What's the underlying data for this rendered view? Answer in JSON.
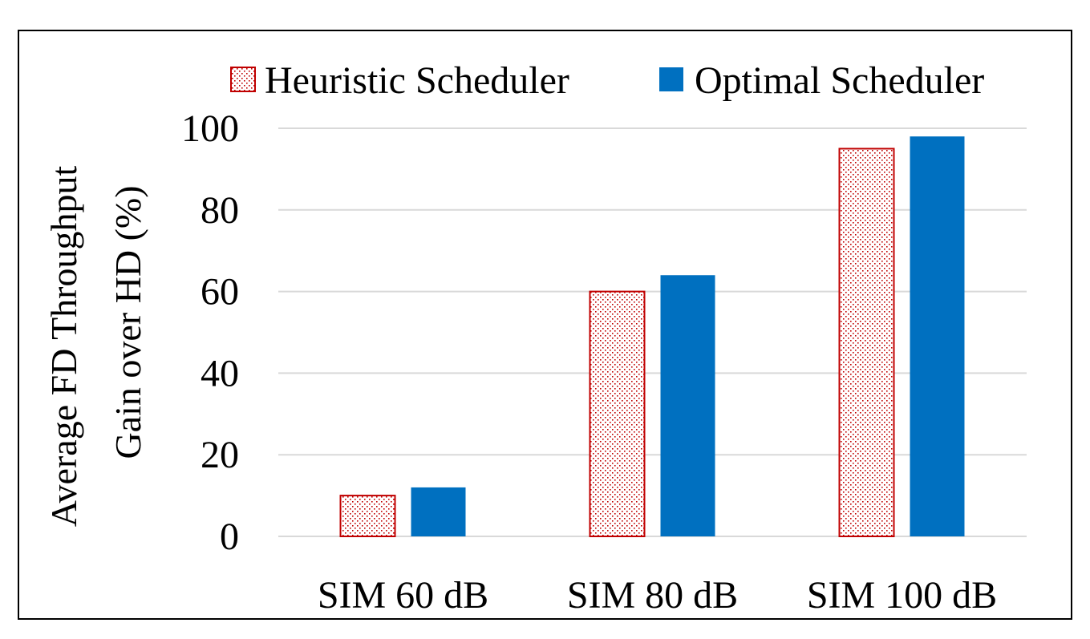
{
  "chart_data": {
    "type": "bar",
    "categories": [
      "SIM 60 dB",
      "SIM 80 dB",
      "SIM 100 dB"
    ],
    "series": [
      {
        "name": "Heuristic Scheduler",
        "values": [
          10,
          60,
          95
        ],
        "color": "#c00000",
        "fill": "dotted"
      },
      {
        "name": "Optimal Scheduler",
        "values": [
          12,
          64,
          98
        ],
        "color": "#0070c0",
        "fill": "solid"
      }
    ],
    "ylabel_lines": [
      "Average FD Throughput",
      "Gain over HD (%)"
    ],
    "ylim": [
      0,
      100
    ],
    "yticks": [
      0,
      20,
      40,
      60,
      80,
      100
    ],
    "grid": true,
    "legend_position": "top"
  }
}
